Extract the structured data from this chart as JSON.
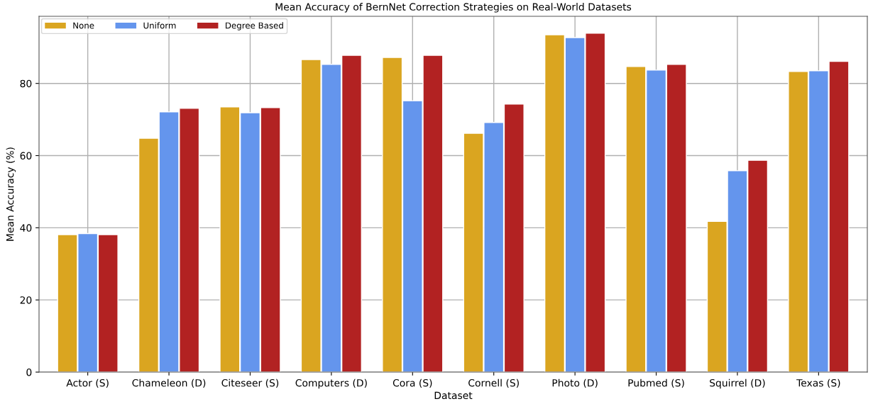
{
  "chart_data": {
    "type": "bar",
    "title": "Mean Accuracy of BernNet Correction Strategies on Real-World Datasets",
    "xlabel": "Dataset",
    "ylabel": "Mean Accuracy (%)",
    "categories": [
      "Actor (S)",
      "Chameleon (D)",
      "Citeseer (S)",
      "Computers (D)",
      "Cora (S)",
      "Cornell (S)",
      "Photo (D)",
      "Pubmed (S)",
      "Squirrel (D)",
      "Texas (S)"
    ],
    "series": [
      {
        "name": "None",
        "color": "#daa520",
        "values": [
          38.1,
          64.8,
          73.5,
          86.6,
          87.2,
          66.2,
          93.5,
          84.7,
          41.8,
          83.3
        ]
      },
      {
        "name": "Uniform",
        "color": "#6495ed",
        "values": [
          38.4,
          72.1,
          71.9,
          85.3,
          75.2,
          69.2,
          92.7,
          83.7,
          55.8,
          83.5
        ]
      },
      {
        "name": "Degree Based",
        "color": "#b22222",
        "values": [
          38.1,
          73.1,
          73.3,
          87.8,
          87.8,
          74.3,
          93.9,
          85.3,
          58.7,
          86.1
        ]
      }
    ],
    "ylim": [
      0,
      98.6
    ],
    "yticks": [
      0,
      20,
      40,
      60,
      80
    ],
    "grid": true,
    "legend": "top left"
  }
}
